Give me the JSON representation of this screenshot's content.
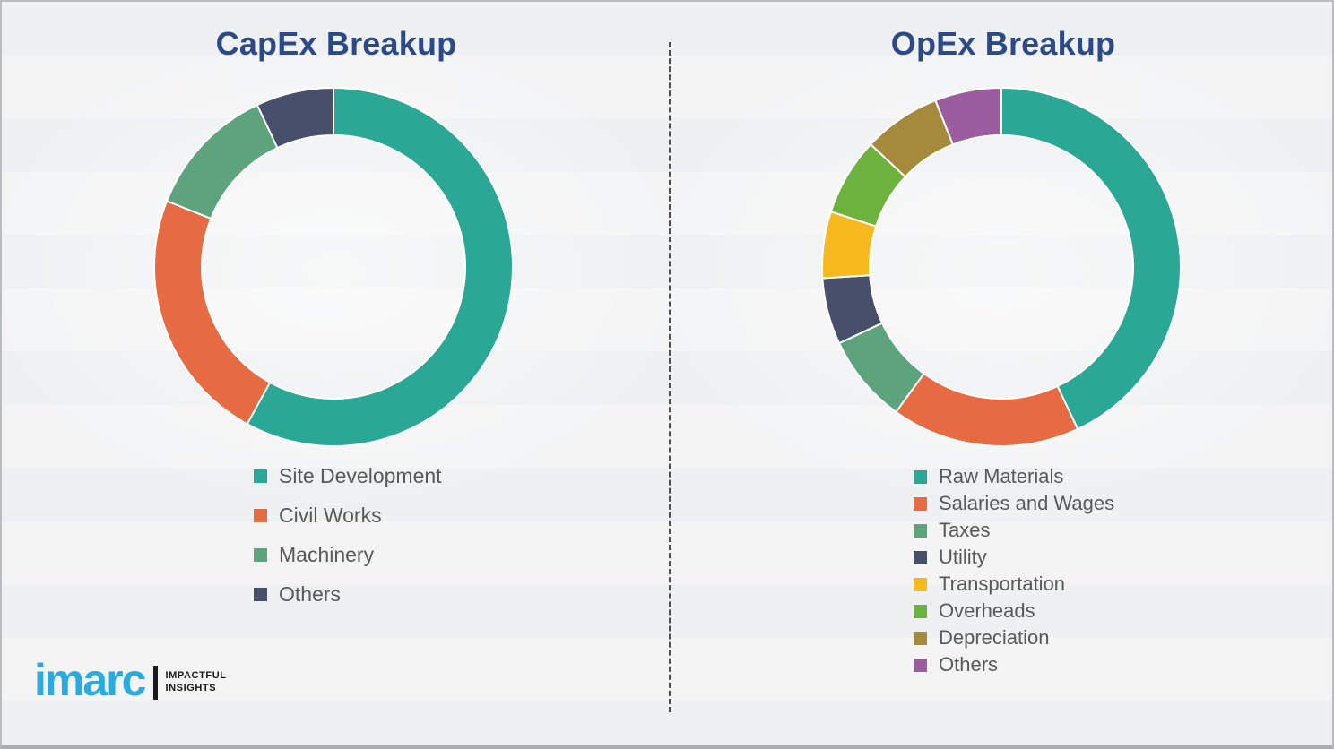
{
  "colors": {
    "background": "#f2f3f4",
    "title_text": "#2c4a87",
    "legend_text": "#595959",
    "divider": "#4d4d4d",
    "slice_gap": "#ffffff"
  },
  "divider": {
    "style": "dashed-vertical"
  },
  "logo": {
    "brand": "imarc",
    "tagline_line1": "IMPACTFUL",
    "tagline_line2": "INSIGHTS",
    "brand_color": "#29abe2",
    "tagline_color": "#1a1a1a"
  },
  "chart_data": [
    {
      "type": "pie",
      "variant": "donut",
      "title": "CapEx Breakup",
      "unit": "percent-share-estimated",
      "start_angle_deg": 0,
      "direction": "clockwise",
      "legend_position": "below-left",
      "slices": [
        {
          "label": "Site Development",
          "value": 58,
          "color": "#2aa795"
        },
        {
          "label": "Civil Works",
          "value": 23,
          "color": "#e66a42"
        },
        {
          "label": "Machinery",
          "value": 12,
          "color": "#5da47c"
        },
        {
          "label": "Others",
          "value": 7,
          "color": "#474f6b"
        }
      ]
    },
    {
      "type": "pie",
      "variant": "donut",
      "title": "OpEx Breakup",
      "unit": "percent-share-estimated",
      "start_angle_deg": 0,
      "direction": "clockwise",
      "legend_position": "below-left",
      "slices": [
        {
          "label": "Raw Materials",
          "value": 43,
          "color": "#2aa795"
        },
        {
          "label": "Salaries and Wages",
          "value": 17,
          "color": "#e66a42"
        },
        {
          "label": "Taxes",
          "value": 8,
          "color": "#5da47c"
        },
        {
          "label": "Utility",
          "value": 6,
          "color": "#474f6b"
        },
        {
          "label": "Transportation",
          "value": 6,
          "color": "#f8b91f"
        },
        {
          "label": "Overheads",
          "value": 7,
          "color": "#6cb33e"
        },
        {
          "label": "Depreciation",
          "value": 7,
          "color": "#a58a3c"
        },
        {
          "label": "Others",
          "value": 6,
          "color": "#9b5d9f"
        }
      ]
    }
  ]
}
